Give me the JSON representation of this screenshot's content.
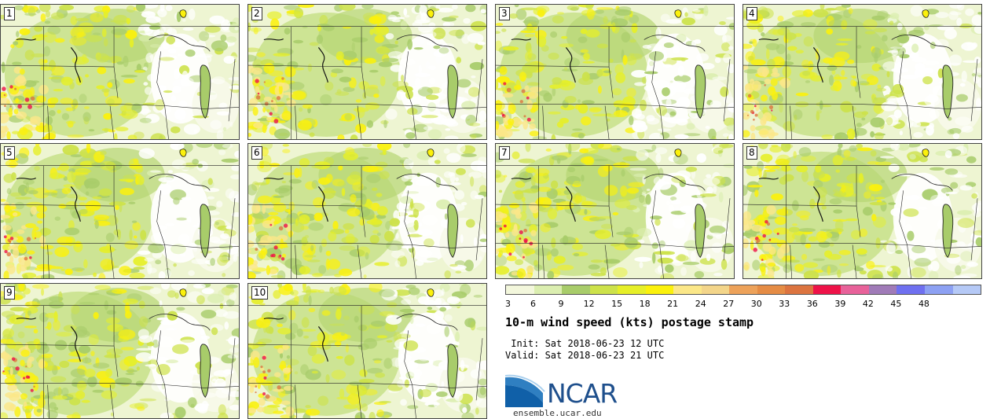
{
  "panels": [
    {
      "label": "1"
    },
    {
      "label": "2"
    },
    {
      "label": "3"
    },
    {
      "label": "4"
    },
    {
      "label": "5"
    },
    {
      "label": "6"
    },
    {
      "label": "7"
    },
    {
      "label": "8"
    },
    {
      "label": "9"
    },
    {
      "label": "10"
    }
  ],
  "colorbar": {
    "ticks": [
      "3",
      "6",
      "9",
      "12",
      "15",
      "18",
      "21",
      "24",
      "27",
      "30",
      "33",
      "36",
      "39",
      "42",
      "45",
      "48"
    ],
    "colors": [
      "#f3f7dc",
      "#dbeeb0",
      "#a8cc6a",
      "#cde24a",
      "#e6ef28",
      "#fbf10c",
      "#fbe788",
      "#f3d58a",
      "#eda25a",
      "#e58c45",
      "#dc7440",
      "#ee1248",
      "#e8629a",
      "#a07bb8",
      "#6f70f0",
      "#8da1f3",
      "#b5c9f6"
    ]
  },
  "title": "10-m wind speed (kts) postage stamp",
  "init_line": " Init: Sat 2018-06-23 12 UTC",
  "valid_line": "Valid: Sat 2018-06-23 21 UTC",
  "logo_text": "NCAR",
  "url": "ensemble.ucar.edu"
}
